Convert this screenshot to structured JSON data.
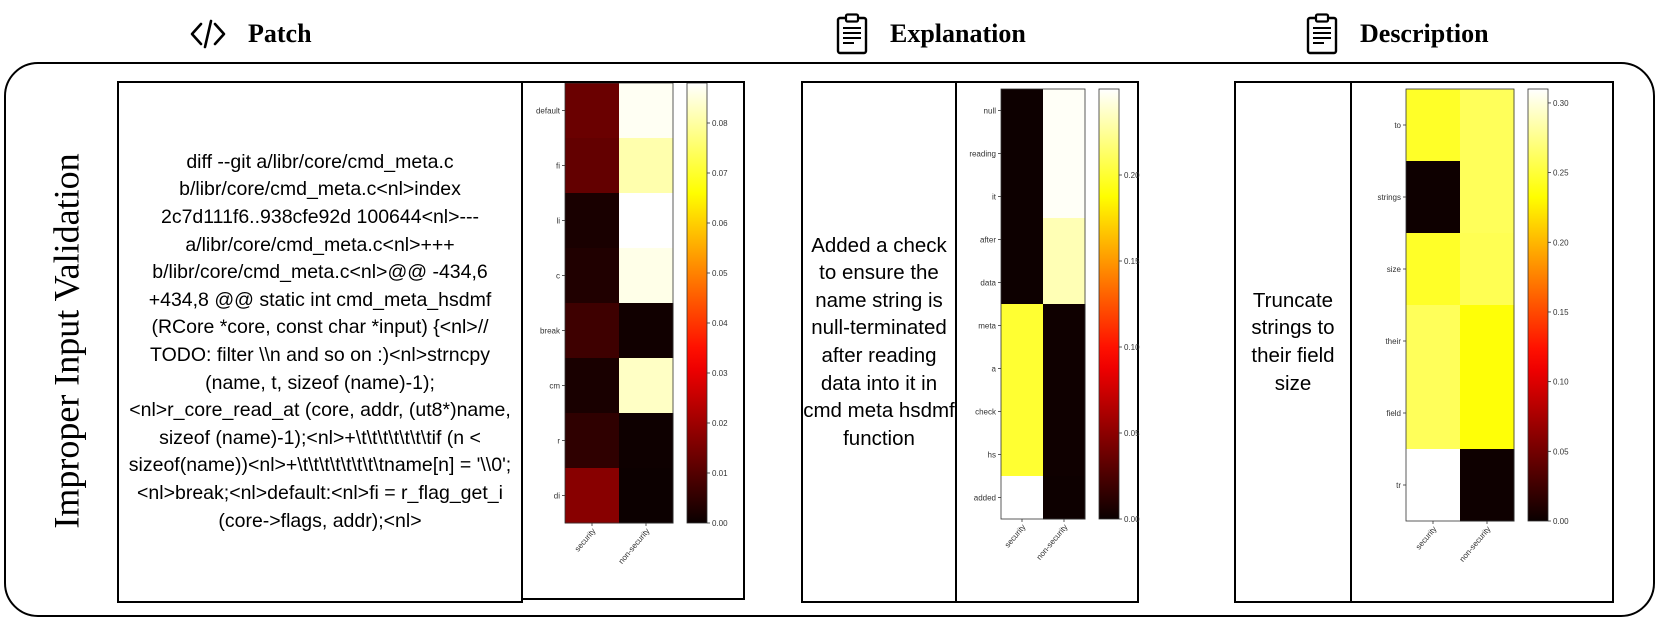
{
  "headers": {
    "patch": {
      "label": "Patch",
      "icon": "code-icon"
    },
    "explanation": {
      "label": "Explanation",
      "icon": "clipboard-icon"
    },
    "description": {
      "label": "Description",
      "icon": "clipboard-icon"
    }
  },
  "row_label": "Improper Input Validation",
  "patch_text": "diff --git a/libr/core/cmd_meta.c b/libr/core/cmd_meta.c<nl>index 2c7d111f6..938cfe92d 100644<nl>--- a/libr/core/cmd_meta.c<nl>+++ b/libr/core/cmd_meta.c<nl>@@ -434,6 +434,8 @@ static int cmd_meta_hsdmf (RCore *core, const char *input) {<nl>// TODO: filter \\\\n and so on :)<nl>strncpy (name, t, sizeof (name)-1);<nl>r_core_read_at (core, addr, (ut8*)name, sizeof (name)-1);<nl>+\\t\\t\\t\\t\\t\\t\\tif (n < sizeof(name))<nl>+\\t\\t\\t\\t\\t\\t\\t\\tname[n] = '\\\\0';<nl>break;<nl>default:<nl>fi = r_flag_get_i (core->flags, addr);<nl>",
  "explanation_text": "Added a check to ensure the name string is null-terminated after reading data into it in cmd meta hsdmf function",
  "description_text": "Truncate strings to their field size",
  "chart_data": [
    {
      "type": "heatmap",
      "name": "patch-heatmap",
      "rows": [
        "default",
        "fi",
        "li",
        "c",
        "break",
        "cm",
        "r",
        "di"
      ],
      "columns": [
        "security",
        "non-security"
      ],
      "values": [
        [
          0.013,
          0.087
        ],
        [
          0.012,
          0.081
        ],
        [
          0.002,
          0.088
        ],
        [
          0.003,
          0.086
        ],
        [
          0.007,
          0.001
        ],
        [
          0.002,
          0.083
        ],
        [
          0.005,
          0.0005
        ],
        [
          0.017,
          0.0003
        ]
      ],
      "colorbar": {
        "min": 0,
        "max": 0.088,
        "ticks": [
          "0.00",
          "0.01",
          "0.02",
          "0.03",
          "0.04",
          "0.05",
          "0.06",
          "0.07",
          "0.08"
        ],
        "tick_values": [
          0,
          0.01,
          0.02,
          0.03,
          0.04,
          0.05,
          0.06,
          0.07,
          0.08
        ]
      },
      "colormap": "hot"
    },
    {
      "type": "heatmap",
      "name": "explanation-heatmap",
      "rows": [
        "null",
        "reading",
        "it",
        "after",
        "data",
        "meta",
        "a",
        "check",
        "hs",
        "added"
      ],
      "columns": [
        "security",
        "non-security"
      ],
      "values": [
        [
          0.001,
          0.248
        ],
        [
          0.001,
          0.248
        ],
        [
          0.001,
          0.248
        ],
        [
          0.001,
          0.232
        ],
        [
          0.001,
          0.232
        ],
        [
          0.2,
          0.002
        ],
        [
          0.2,
          0.002
        ],
        [
          0.2,
          0.002
        ],
        [
          0.2,
          0.002
        ],
        [
          0.25,
          0.001
        ]
      ],
      "colorbar": {
        "min": 0,
        "max": 0.25,
        "ticks": [
          "0.00",
          "0.05",
          "0.10",
          "0.15",
          "0.20"
        ],
        "tick_values": [
          0,
          0.05,
          0.1,
          0.15,
          0.2
        ]
      },
      "colormap": "hot"
    },
    {
      "type": "heatmap",
      "name": "description-heatmap",
      "rows": [
        "to",
        "strings",
        "size",
        "their",
        "field",
        "tr"
      ],
      "columns": [
        "security",
        "non-security"
      ],
      "values": [
        [
          0.245,
          0.26
        ],
        [
          0.002,
          0.26
        ],
        [
          0.245,
          0.258
        ],
        [
          0.26,
          0.235
        ],
        [
          0.26,
          0.235
        ],
        [
          0.31,
          0.002
        ]
      ],
      "colorbar": {
        "min": 0,
        "max": 0.31,
        "ticks": [
          "0.00",
          "0.05",
          "0.10",
          "0.15",
          "0.20",
          "0.25",
          "0.30"
        ],
        "tick_values": [
          0,
          0.05,
          0.1,
          0.15,
          0.2,
          0.25,
          0.3
        ]
      },
      "colormap": "hot"
    }
  ]
}
